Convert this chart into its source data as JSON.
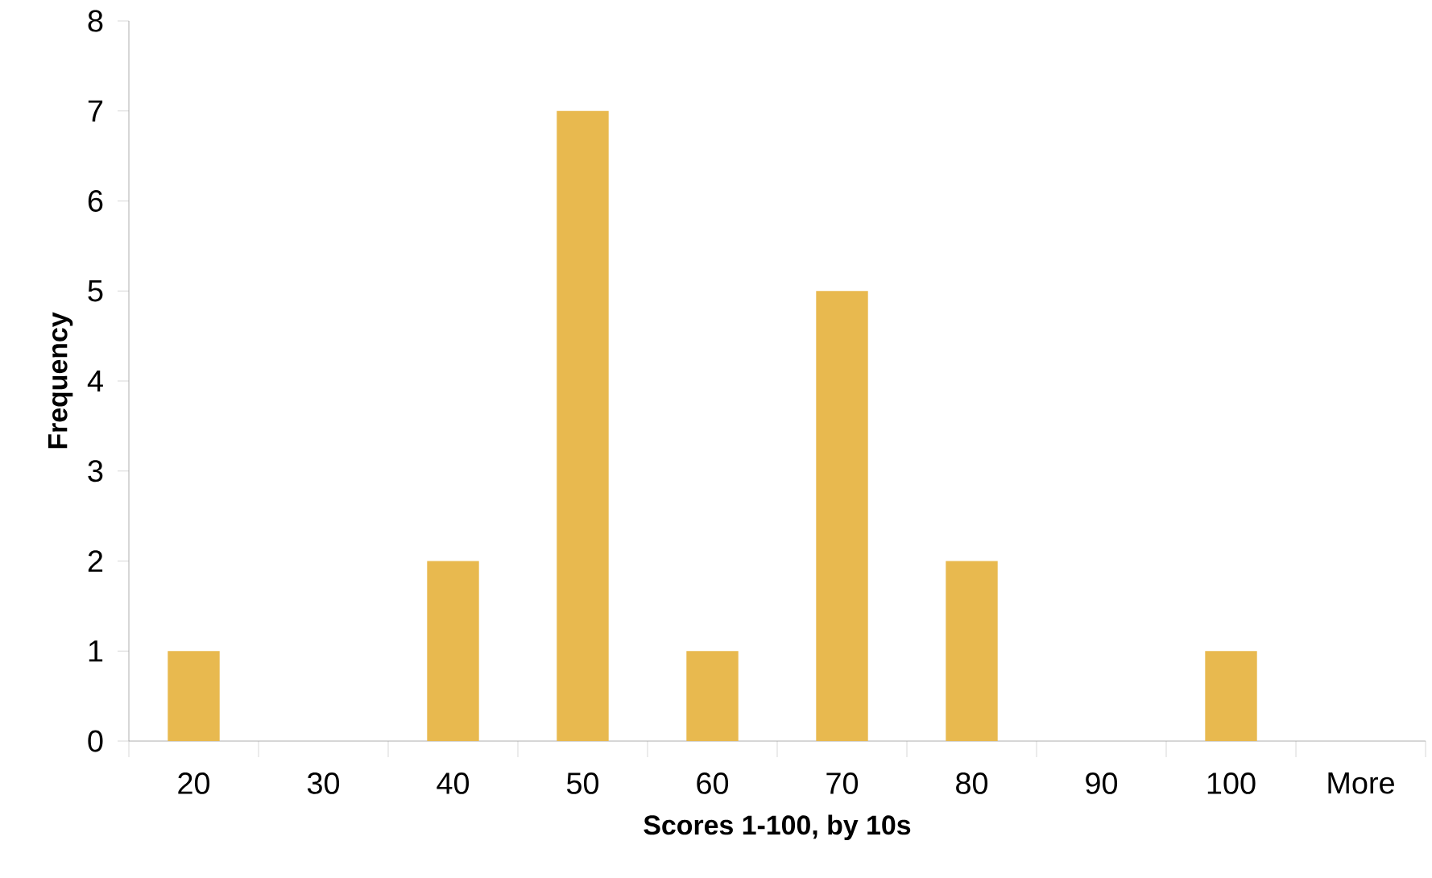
{
  "chart_data": {
    "type": "bar",
    "xlabel": "Scores 1-100, by 10s",
    "ylabel": "Frequency",
    "categories": [
      "20",
      "30",
      "40",
      "50",
      "60",
      "70",
      "80",
      "90",
      "100",
      "More"
    ],
    "values": [
      1,
      0,
      2,
      7,
      1,
      5,
      2,
      0,
      1,
      0
    ],
    "color": "#e8b94f",
    "ylim": [
      0,
      8
    ],
    "yticks": [
      0,
      1,
      2,
      3,
      4,
      5,
      6,
      7,
      8
    ]
  }
}
